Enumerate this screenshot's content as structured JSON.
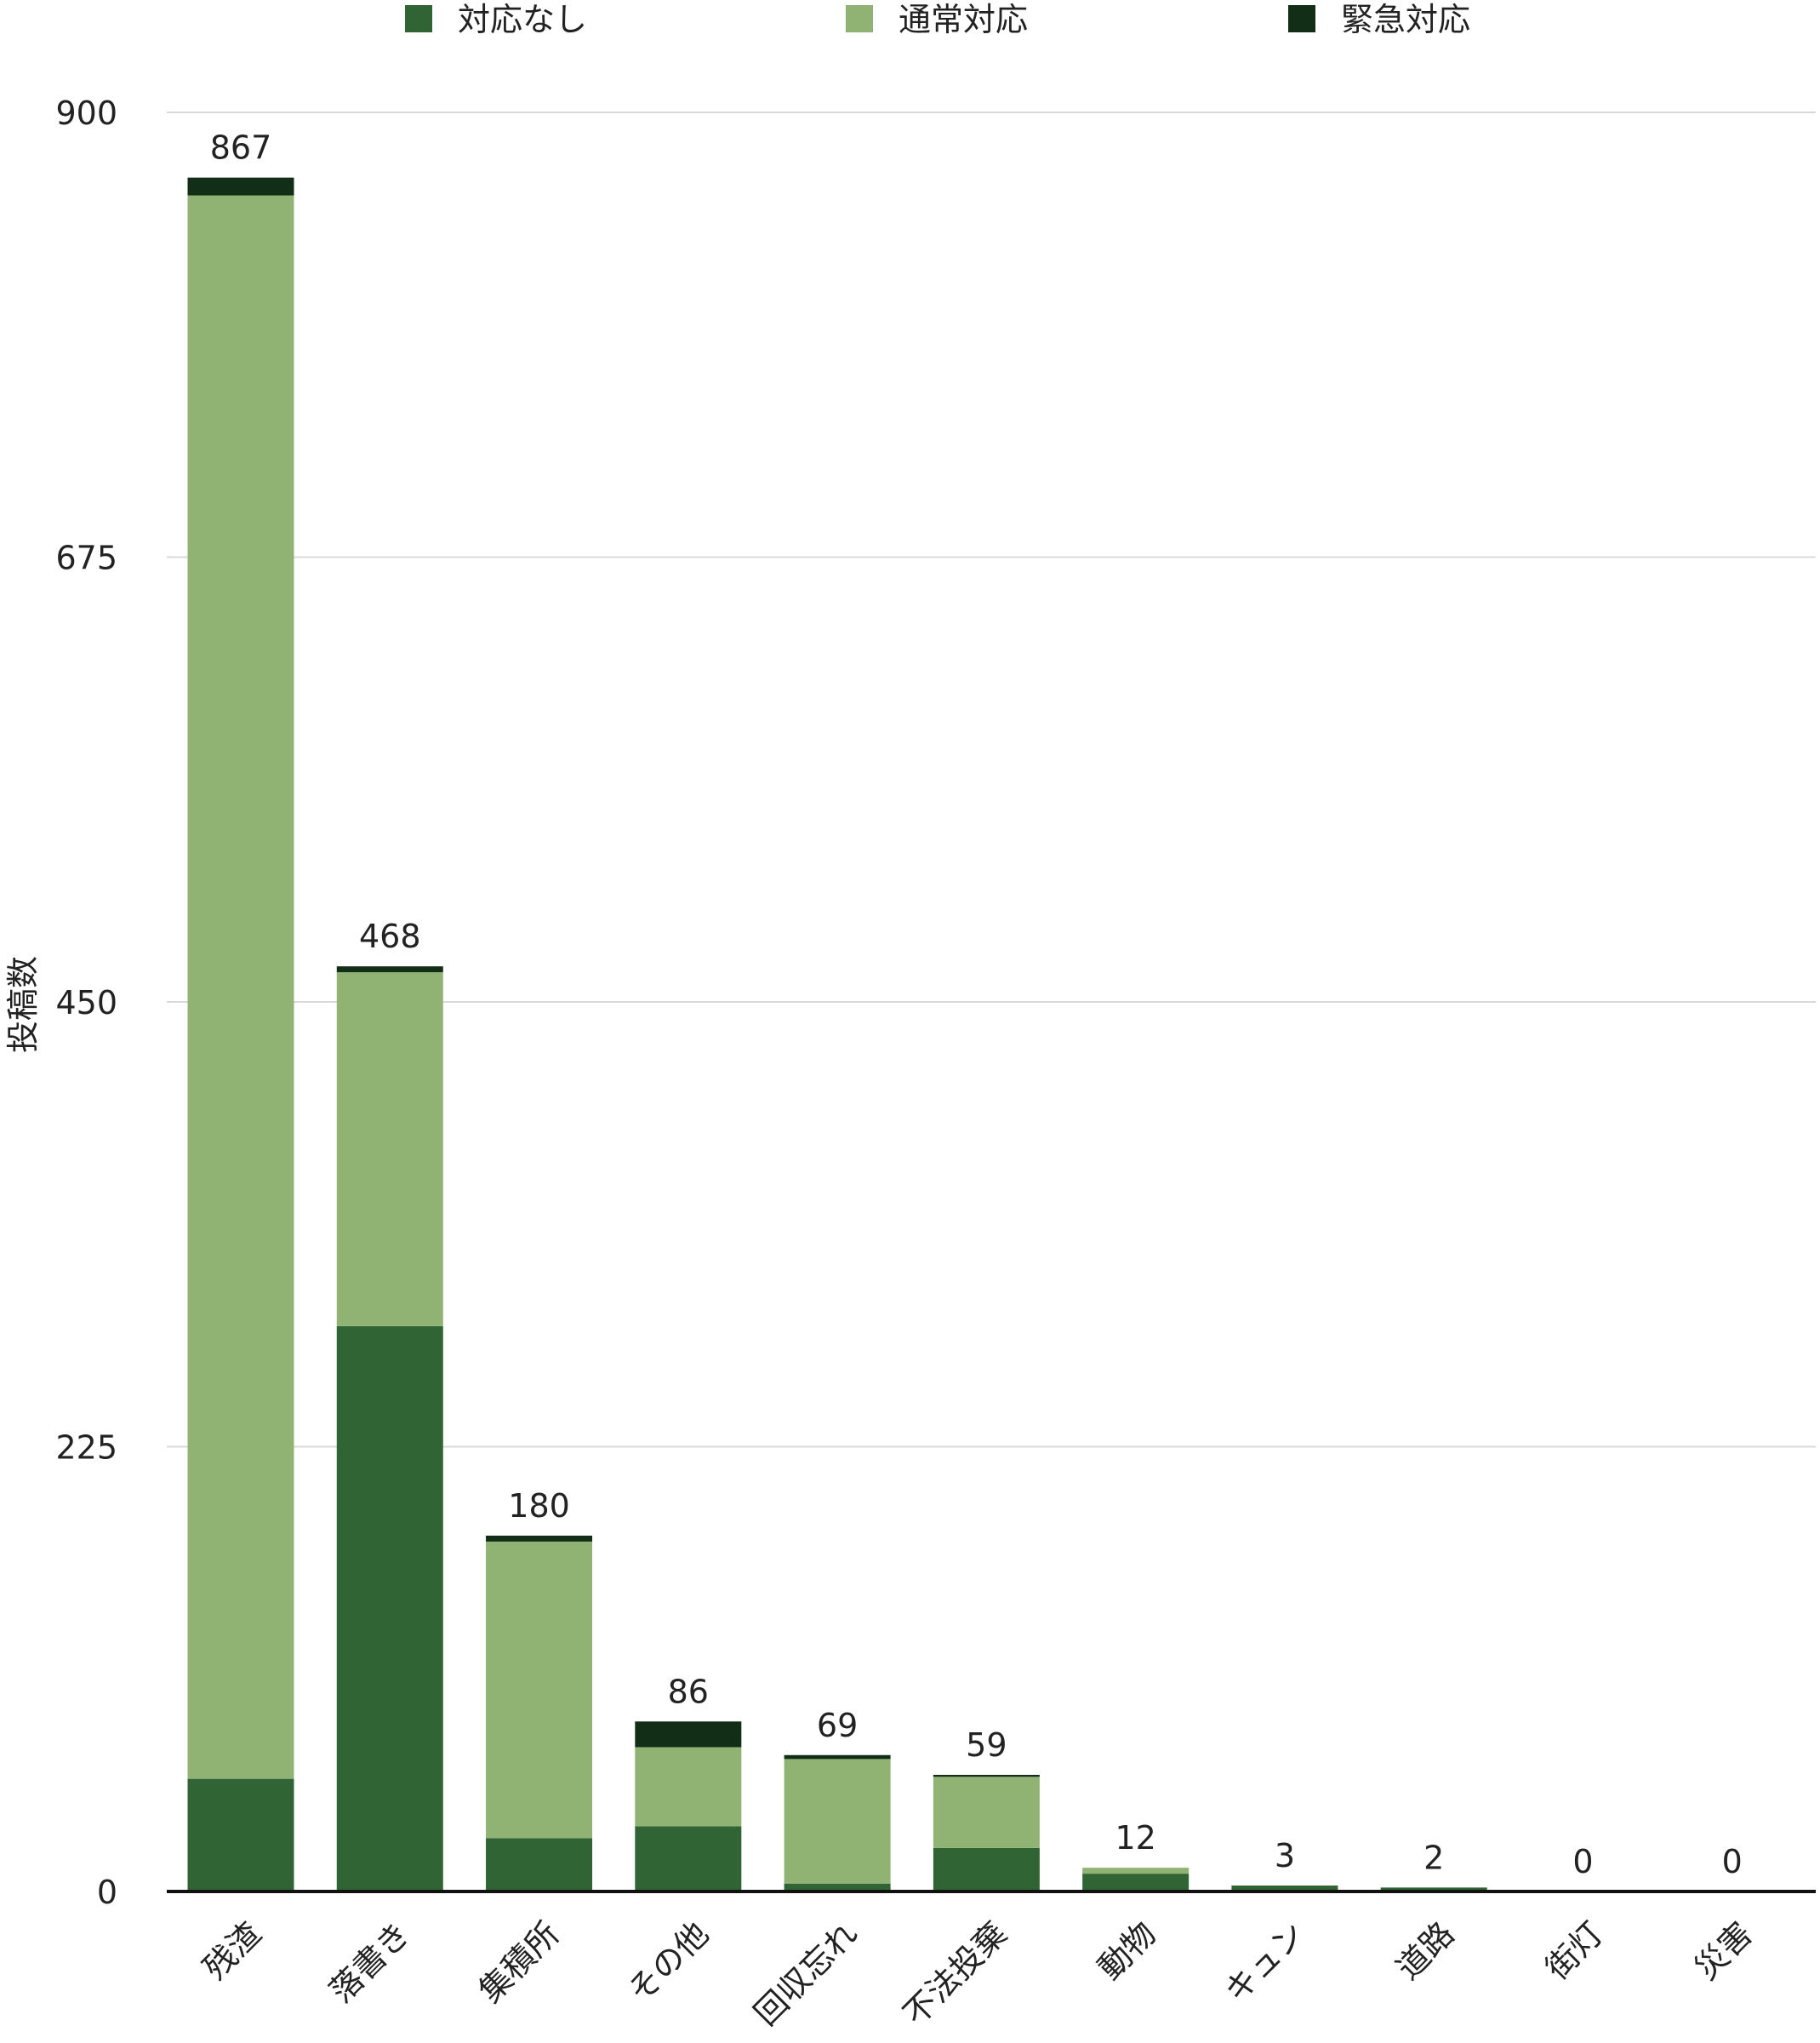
{
  "chart_data": {
    "type": "bar",
    "stacked": true,
    "ylabel": "投稿数",
    "xlabel": "",
    "ylim": [
      0,
      900
    ],
    "yticks": [
      0,
      225,
      450,
      675,
      900
    ],
    "grid": true,
    "legend_position": "top",
    "categories": [
      "残渣",
      "落書き",
      "集積所",
      "その他",
      "回収忘れ",
      "不法投棄",
      "動物",
      "キュン",
      "道路",
      "街灯",
      "災害"
    ],
    "totals": [
      867,
      468,
      180,
      86,
      69,
      59,
      12,
      3,
      2,
      0,
      0
    ],
    "series": [
      {
        "name": "対応なし",
        "color": "#306434",
        "values": [
          57,
          286,
          27,
          33,
          4,
          22,
          9,
          3,
          2,
          0,
          0
        ]
      },
      {
        "name": "通常対応",
        "color": "#90b373",
        "values": [
          801,
          179,
          150,
          40,
          63,
          36,
          3,
          0,
          0,
          0,
          0
        ]
      },
      {
        "name": "緊急対応",
        "color": "#122e16",
        "values": [
          9,
          3,
          3,
          13,
          2,
          1,
          0,
          0,
          0,
          0,
          0
        ]
      }
    ]
  }
}
